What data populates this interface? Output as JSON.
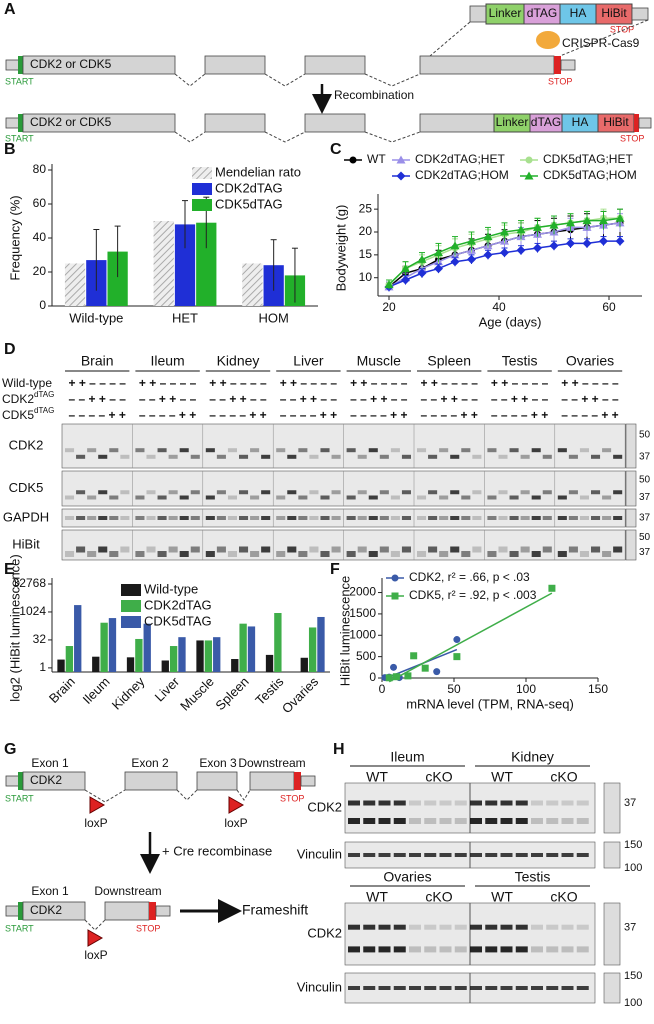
{
  "panel_labels": [
    "A",
    "B",
    "C",
    "D",
    "E",
    "F",
    "G",
    "H"
  ],
  "panel_a": {
    "insert": [
      "Linker",
      "dTAG",
      "HA",
      "HiBit"
    ],
    "stop": "STOP",
    "nuclease": "CRISPR-Cas9",
    "gene": "CDK2 or CDK5",
    "start": "START",
    "arrow": "Recombination"
  },
  "chart_data": [
    {
      "type": "bar",
      "ylabel": "Frequency (%)",
      "categories": [
        "Wild-type",
        "HET",
        "HOM"
      ],
      "series": [
        {
          "name": "Mendelian rato",
          "color": "#d9d9d9",
          "hatch": true,
          "values": [
            25,
            50,
            25
          ]
        },
        {
          "name": "CDK2dTAG",
          "color": "#1f2fd6",
          "values": [
            27,
            48,
            24
          ],
          "errors": [
            18,
            14,
            15
          ]
        },
        {
          "name": "CDK5dTAG",
          "color": "#22b02a",
          "values": [
            32,
            49,
            18
          ],
          "errors": [
            15,
            15,
            16
          ]
        }
      ],
      "ylim": [
        0,
        80
      ],
      "yticks": [
        0,
        20,
        40,
        60,
        80
      ],
      "legend": "upper right"
    },
    {
      "type": "line",
      "xlabel": "Age (days)",
      "ylabel": "Bodyweight (g)",
      "x": [
        20,
        23,
        26,
        29,
        32,
        35,
        38,
        41,
        44,
        47,
        50,
        53,
        56,
        59,
        62
      ],
      "xlim": [
        18,
        66
      ],
      "xticks": [
        20,
        40,
        60
      ],
      "ylim": [
        6,
        27
      ],
      "yticks": [
        10,
        15,
        20,
        25
      ],
      "legend": "top",
      "series": [
        {
          "name": "WT",
          "color": "#000000",
          "marker": "circle",
          "values": [
            8,
            11,
            12,
            14,
            15,
            16,
            17,
            18,
            19,
            19.5,
            20,
            20.5,
            21,
            21.5,
            22
          ],
          "errors": [
            1,
            1.5,
            2,
            2,
            2,
            2.5,
            2.5,
            2.5,
            3,
            3,
            3,
            3,
            3,
            3,
            3
          ]
        },
        {
          "name": "CDK2dTAG;HET",
          "color": "#9a8fe8",
          "marker": "triangle",
          "values": [
            8,
            10,
            12,
            13.5,
            15,
            16,
            17,
            18,
            19,
            19.5,
            20,
            21,
            21,
            21.5,
            22
          ],
          "errors": [
            1,
            1,
            1.5,
            1.5,
            2,
            2,
            2,
            2,
            2,
            2,
            2,
            2,
            2,
            2,
            2
          ]
        },
        {
          "name": "CDK2dTAG;HOM",
          "color": "#1f2fd6",
          "marker": "diamond",
          "values": [
            8,
            9.5,
            11,
            12,
            13.5,
            14,
            15,
            15.5,
            16,
            16.5,
            17,
            17.5,
            17.5,
            18,
            18
          ],
          "errors": [
            1,
            1,
            1,
            1,
            1,
            1,
            1,
            1,
            1,
            1,
            1,
            1,
            1,
            1,
            1
          ]
        },
        {
          "name": "CDK5dTAG;HET",
          "color": "#a8e08f",
          "marker": "circle",
          "values": [
            8.5,
            12,
            13.5,
            15,
            16.5,
            17.5,
            18.5,
            19.5,
            20,
            21,
            21.5,
            22,
            22.5,
            23,
            23
          ],
          "errors": [
            1,
            1.5,
            1.5,
            2,
            2,
            2,
            2,
            2,
            2,
            2,
            2,
            2,
            2,
            2,
            2
          ]
        },
        {
          "name": "CDK5dTAG;HOM",
          "color": "#22b02a",
          "marker": "triangle",
          "values": [
            8.5,
            12,
            14,
            15.5,
            17,
            18,
            19,
            20,
            20.5,
            21,
            21.5,
            22,
            22.5,
            22.5,
            23
          ],
          "errors": [
            1,
            1.5,
            1.5,
            2,
            2,
            2,
            2,
            2,
            2,
            2,
            2,
            2,
            2,
            2,
            2
          ]
        }
      ]
    },
    {
      "type": "bar",
      "ylabel": "log2 (HiBit luminescence)",
      "yscale": "log",
      "log_base": 2,
      "categories": [
        "Brain",
        "Ileum",
        "Kidney",
        "Liver",
        "Muscle",
        "Spleen",
        "Testis",
        "Ovaries"
      ],
      "series": [
        {
          "name": "Wild-type",
          "color": "#1a1a1a",
          "values": [
            2.8,
            4,
            3.7,
            2.5,
            30,
            3,
            5,
            3.5
          ]
        },
        {
          "name": "CDK2dTAG",
          "color": "#3fae49",
          "values": [
            15,
            270,
            36,
            15,
            30,
            240,
            900,
            150
          ]
        },
        {
          "name": "CDK5dTAG",
          "color": "#3a5aa8",
          "values": [
            2400,
            480,
            240,
            45,
            45,
            170,
            null,
            550
          ]
        }
      ],
      "ylim": [
        0.6,
        32768
      ],
      "yticks": [
        1,
        32,
        1024,
        32768
      ],
      "legend": "upper center"
    },
    {
      "type": "scatter",
      "xlabel": "mRNA level (TPM, RNA-seq)",
      "ylabel": "HiBit luminescence",
      "xlim": [
        0,
        150
      ],
      "xticks": [
        0,
        50,
        100,
        150
      ],
      "ylim": [
        0,
        2200
      ],
      "yticks": [
        0,
        500,
        1000,
        1500,
        2000
      ],
      "legend": "upper left",
      "fit": true,
      "series": [
        {
          "name": "CDK2, r² = .66, p < .03",
          "color": "#3a5aa8",
          "marker": "circle",
          "x": [
            2,
            5,
            8,
            12,
            38,
            52
          ],
          "values": [
            10,
            20,
            250,
            10,
            150,
            900
          ]
        },
        {
          "name": "CDK5, r² = .92, p < .003",
          "color": "#3fae49",
          "marker": "square",
          "x": [
            5,
            10,
            18,
            22,
            30,
            52,
            118
          ],
          "values": [
            5,
            30,
            50,
            520,
            230,
            500,
            2100
          ]
        }
      ]
    }
  ],
  "panel_d": {
    "tissues": [
      "Brain",
      "Ileum",
      "Kidney",
      "Liver",
      "Muscle",
      "Spleen",
      "Testis",
      "Ovaries"
    ],
    "genotypes": [
      {
        "label": "Wild-type",
        "sup": "",
        "lanes": "+ + – – – –"
      },
      {
        "label": "CDK2",
        "sup": "dTAG",
        "lanes": "– – + + – –"
      },
      {
        "label": "CDK5",
        "sup": "dTAG",
        "lanes": "– – – – + +"
      }
    ],
    "blots": [
      {
        "label": "CDK2",
        "markers": [
          50,
          37
        ]
      },
      {
        "label": "CDK5",
        "markers": [
          50,
          37
        ]
      },
      {
        "label": "GAPDH",
        "markers": [
          37
        ]
      },
      {
        "label": "HiBit",
        "markers": [
          50,
          37
        ]
      }
    ]
  },
  "panel_g": {
    "exons": [
      "Exon 1",
      "Exon 2",
      "Exon 3",
      "Downstream"
    ],
    "gene": "CDK2",
    "start": "START",
    "stop": "STOP",
    "site": "loxP",
    "arrow": "+ Cre recombinase",
    "result": "Frameshift"
  },
  "panel_h": {
    "tissues": [
      "Ileum",
      "Kidney",
      "Ovaries",
      "Testis"
    ],
    "genotypes": [
      "WT",
      "cKO"
    ],
    "blots": [
      "CDK2",
      "Vinculin"
    ],
    "cdk2_markers": [
      37
    ],
    "vinculin_markers": [
      150,
      100
    ]
  }
}
